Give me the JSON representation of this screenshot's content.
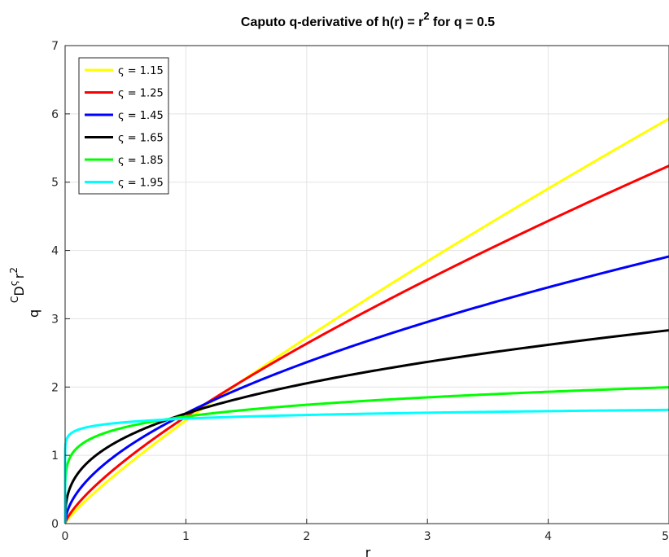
{
  "chart_data": {
    "type": "line",
    "title": {
      "main": "Caputo q-derivative of h(r) = r",
      "sup": "2",
      "tail": " for q = 0.5"
    },
    "xlabel": "r",
    "ylabel": {
      "a": "C",
      "b": "D",
      "c": "ς",
      "d": "r",
      "e": "2",
      "f": "q"
    },
    "xlim": [
      0,
      5
    ],
    "ylim": [
      0,
      7
    ],
    "x_ticks": [
      "0",
      "1",
      "2",
      "3",
      "4",
      "5"
    ],
    "y_ticks": [
      "0",
      "1",
      "2",
      "3",
      "4",
      "5",
      "6",
      "7"
    ],
    "grid": true,
    "legend_position": "top-left",
    "series": [
      {
        "name": "ς = 1.15",
        "color": "#ffff00",
        "scale": 1.51,
        "exponent": 0.85
      },
      {
        "name": "ς = 1.25",
        "color": "#ff0000",
        "scale": 1.567,
        "exponent": 0.75
      },
      {
        "name": "ς = 1.45",
        "color": "#0000ff",
        "scale": 1.614,
        "exponent": 0.55
      },
      {
        "name": "ς = 1.65",
        "color": "#000000",
        "scale": 1.612,
        "exponent": 0.35
      },
      {
        "name": "ς = 1.85",
        "color": "#00ff00",
        "scale": 1.568,
        "exponent": 0.15
      },
      {
        "name": "ς = 1.95",
        "color": "#00ffff",
        "scale": 1.537,
        "exponent": 0.05
      }
    ]
  }
}
